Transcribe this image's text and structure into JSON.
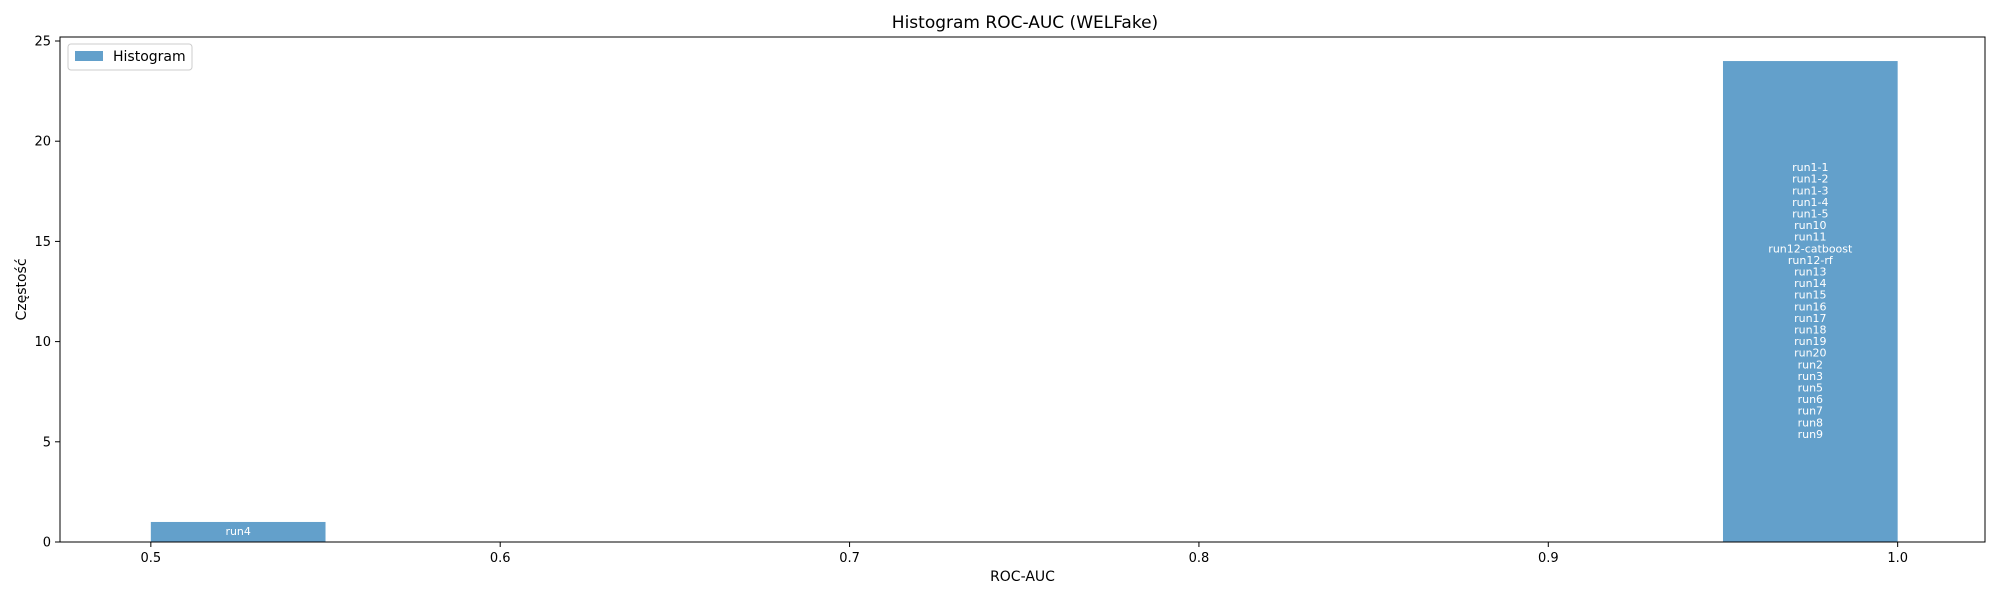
{
  "chart_data": {
    "type": "bar",
    "title": "Histogram ROC-AUC (WELFake)",
    "xlabel": "ROC-AUC",
    "ylabel": "Częstość",
    "xlim": [
      0.474,
      1.025
    ],
    "ylim": [
      0,
      25.2
    ],
    "xticks": [
      0.5,
      0.6,
      0.7,
      0.8,
      0.9,
      1.0
    ],
    "xtick_labels": [
      "0.5",
      "0.6",
      "0.7",
      "0.8",
      "0.9",
      "1.0"
    ],
    "yticks": [
      0,
      5,
      10,
      15,
      20,
      25
    ],
    "ytick_labels": [
      "0",
      "5",
      "10",
      "15",
      "20",
      "25"
    ],
    "grid": false,
    "legend": {
      "placement": "top-left",
      "entries": [
        "Histogram"
      ]
    },
    "bar_color": "#63a0cb",
    "bars": [
      {
        "x0": 0.5,
        "x1": 0.55,
        "value": 1,
        "labels": [
          "run4"
        ]
      },
      {
        "x0": 0.95,
        "x1": 1.0,
        "value": 24,
        "labels": [
          "run1-1",
          "run1-2",
          "run1-3",
          "run1-4",
          "run1-5",
          "run10",
          "run11",
          "run12-catboost",
          "run12-rf",
          "run13",
          "run14",
          "run15",
          "run16",
          "run17",
          "run18",
          "run19",
          "run20",
          "run2",
          "run3",
          "run5",
          "run6",
          "run7",
          "run8",
          "run9"
        ]
      }
    ]
  }
}
